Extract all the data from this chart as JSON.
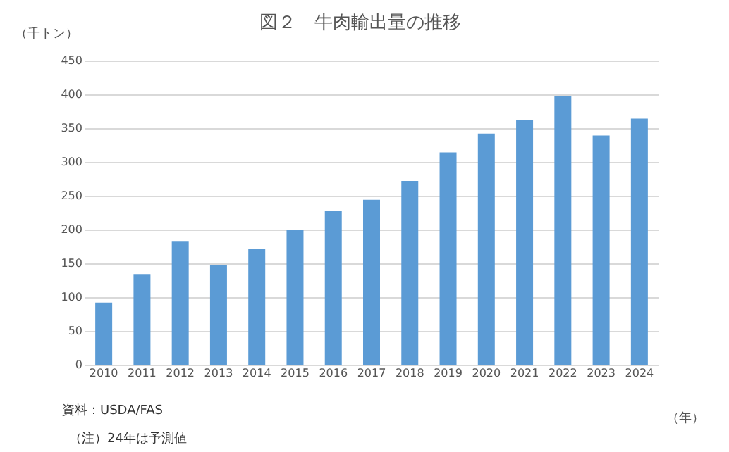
{
  "chart_data": {
    "type": "bar",
    "title": "図２　牛肉輸出量の推移",
    "ylabel": "（千トン）",
    "xlabel": "（年）",
    "categories": [
      "2010",
      "2011",
      "2012",
      "2013",
      "2014",
      "2015",
      "2016",
      "2017",
      "2018",
      "2019",
      "2020",
      "2021",
      "2022",
      "2023",
      "2024"
    ],
    "values": [
      92,
      134,
      182,
      147,
      171,
      199,
      227,
      244,
      272,
      314,
      342,
      362,
      398,
      339,
      364
    ],
    "color": "#5b9bd5",
    "ylim": [
      0,
      450
    ],
    "yticks": [
      0,
      50,
      100,
      150,
      200,
      250,
      300,
      350,
      400,
      450
    ],
    "grid": "y",
    "annotations": [
      "資料：USDA/FAS",
      "（注）24年は予測値"
    ]
  }
}
